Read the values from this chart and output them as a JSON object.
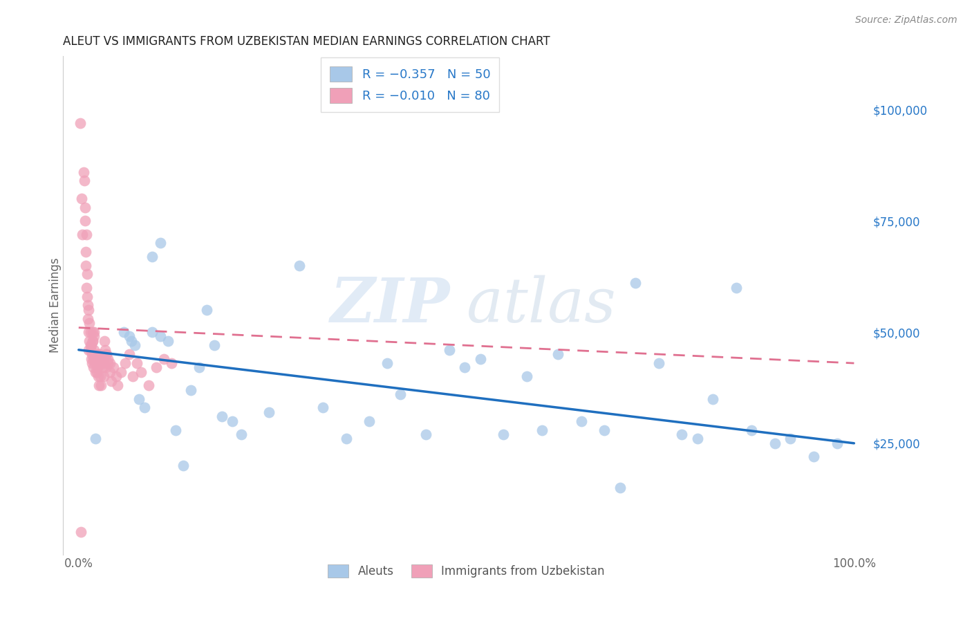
{
  "title": "ALEUT VS IMMIGRANTS FROM UZBEKISTAN MEDIAN EARNINGS CORRELATION CHART",
  "source": "Source: ZipAtlas.com",
  "ylabel": "Median Earnings",
  "right_yticklabels": [
    "$25,000",
    "$50,000",
    "$75,000",
    "$100,000"
  ],
  "right_yticks": [
    25000,
    50000,
    75000,
    100000
  ],
  "ylim": [
    0,
    112000
  ],
  "xlim": [
    -0.02,
    1.02
  ],
  "watermark_zip": "ZIP",
  "watermark_atlas": "atlas",
  "blue_line_color": "#1f6fbf",
  "pink_line_color": "#e07090",
  "blue_scatter_color": "#a8c8e8",
  "pink_scatter_color": "#f0a0b8",
  "grid_color": "#cccccc",
  "right_axis_color": "#2878c8",
  "title_color": "#222222",
  "aleuts_x": [
    0.022,
    0.065,
    0.068,
    0.072,
    0.078,
    0.085,
    0.095,
    0.105,
    0.115,
    0.125,
    0.135,
    0.145,
    0.155,
    0.165,
    0.175,
    0.185,
    0.198,
    0.21,
    0.245,
    0.285,
    0.315,
    0.345,
    0.375,
    0.398,
    0.415,
    0.448,
    0.478,
    0.498,
    0.518,
    0.548,
    0.578,
    0.598,
    0.618,
    0.648,
    0.678,
    0.698,
    0.718,
    0.748,
    0.778,
    0.798,
    0.818,
    0.848,
    0.868,
    0.898,
    0.918,
    0.948,
    0.978,
    0.058,
    0.095,
    0.105
  ],
  "aleuts_y": [
    26000,
    49000,
    48000,
    47000,
    35000,
    33000,
    67000,
    70000,
    48000,
    28000,
    20000,
    37000,
    42000,
    55000,
    47000,
    31000,
    30000,
    27000,
    32000,
    65000,
    33000,
    26000,
    30000,
    43000,
    36000,
    27000,
    46000,
    42000,
    44000,
    27000,
    40000,
    28000,
    45000,
    30000,
    28000,
    15000,
    61000,
    43000,
    27000,
    26000,
    35000,
    60000,
    28000,
    25000,
    26000,
    22000,
    25000,
    50000,
    50000,
    49000
  ],
  "uzbek_x": [
    0.002,
    0.004,
    0.005,
    0.006,
    0.007,
    0.008,
    0.008,
    0.009,
    0.009,
    0.01,
    0.01,
    0.011,
    0.011,
    0.012,
    0.012,
    0.013,
    0.013,
    0.014,
    0.014,
    0.015,
    0.015,
    0.016,
    0.016,
    0.017,
    0.017,
    0.018,
    0.018,
    0.019,
    0.019,
    0.02,
    0.02,
    0.021,
    0.021,
    0.022,
    0.022,
    0.023,
    0.023,
    0.024,
    0.025,
    0.025,
    0.026,
    0.027,
    0.028,
    0.029,
    0.03,
    0.031,
    0.032,
    0.033,
    0.034,
    0.035,
    0.036,
    0.038,
    0.04,
    0.042,
    0.045,
    0.048,
    0.05,
    0.055,
    0.06,
    0.065,
    0.07,
    0.075,
    0.08,
    0.09,
    0.1,
    0.11,
    0.12,
    0.013,
    0.015,
    0.018,
    0.02,
    0.022,
    0.025,
    0.027,
    0.03,
    0.032,
    0.035,
    0.038,
    0.04,
    0.003
  ],
  "uzbek_y": [
    97000,
    80000,
    72000,
    86000,
    84000,
    78000,
    75000,
    68000,
    65000,
    72000,
    60000,
    58000,
    63000,
    56000,
    53000,
    55000,
    50000,
    52000,
    48000,
    46000,
    50000,
    44000,
    47000,
    45000,
    43000,
    50000,
    48000,
    44000,
    42000,
    49000,
    46000,
    44000,
    43000,
    41000,
    45000,
    43000,
    41000,
    42000,
    40000,
    45000,
    38000,
    43000,
    40000,
    38000,
    44000,
    42000,
    40000,
    48000,
    46000,
    42000,
    45000,
    43000,
    41000,
    39000,
    42000,
    40000,
    38000,
    41000,
    43000,
    45000,
    40000,
    43000,
    41000,
    38000,
    42000,
    44000,
    43000,
    46000,
    47000,
    48000,
    50000,
    44000,
    43000,
    45000,
    44000,
    43000,
    45000,
    44000,
    43000,
    5000
  ],
  "blue_trendline_x0": 0.0,
  "blue_trendline_y0": 46000,
  "blue_trendline_x1": 1.0,
  "blue_trendline_y1": 25000,
  "pink_trendline_x0": 0.0,
  "pink_trendline_y0": 51000,
  "pink_trendline_x1": 1.0,
  "pink_trendline_y1": 43000
}
